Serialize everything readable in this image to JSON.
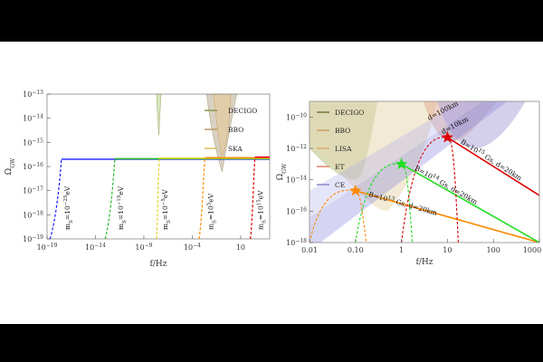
{
  "chart_data": [
    {
      "type": "line",
      "xlabel": "f/Hz",
      "ylabel": "Ω_GW",
      "x_scale": "log",
      "y_scale": "log",
      "xlim": [
        1e-19,
        10000.0
      ],
      "ylim": [
        1e-19,
        1e-13
      ],
      "x_ticks": [
        {
          "v": 1e-19,
          "b": "10",
          "e": "−19"
        },
        {
          "v": 1e-14,
          "b": "10",
          "e": "−14"
        },
        {
          "v": 1e-09,
          "b": "10",
          "e": "−9"
        },
        {
          "v": 0.0001,
          "b": "10",
          "e": "−4"
        },
        {
          "v": 10,
          "b": "10",
          "e": ""
        }
      ],
      "y_ticks": [
        {
          "v": 1e-19,
          "b": "10",
          "e": "−19"
        },
        {
          "v": 1e-18,
          "b": "10",
          "e": "−18"
        },
        {
          "v": 1e-17,
          "b": "10",
          "e": "−17"
        },
        {
          "v": 1e-16,
          "b": "10",
          "e": "−16"
        },
        {
          "v": 1e-15,
          "b": "10",
          "e": "−15"
        },
        {
          "v": 1e-14,
          "b": "10",
          "e": "−14"
        },
        {
          "v": 1e-13,
          "b": "10",
          "e": "−13"
        }
      ],
      "legend": {
        "position": "top-right",
        "items": [
          {
            "name": "DECIGO",
            "color": "#8a9a4a"
          },
          {
            "name": "BBO",
            "color": "#b89a6a"
          },
          {
            "name": "SKA",
            "color": "#d8c060"
          }
        ]
      },
      "series": [
        {
          "name": "m_S=10^−25 eV",
          "color": "#1a1aff",
          "plateau": 2e-16,
          "f_start": 3e-18,
          "f_low": 2e-19,
          "label": "m_S=10^−25eV"
        },
        {
          "name": "m_S=10^−15 eV",
          "color": "#22bb22",
          "plateau": 2e-16,
          "f_start": 1e-12,
          "f_low": 1e-13,
          "label": "m_S=10^−15eV"
        },
        {
          "name": "m_S=10^−5 eV",
          "color": "#e6d020",
          "plateau": 2e-16,
          "f_start": 4e-08,
          "f_low": 2e-08,
          "label": "m_S=10^−5eV"
        },
        {
          "name": "m_S=10^5 eV",
          "color": "#ff8800",
          "plateau": 2e-16,
          "f_start": 0.002,
          "f_low": 0.0005,
          "label": "m_S=10^5eV"
        },
        {
          "name": "m_S=10^15 eV",
          "color": "#dd0000",
          "plateau": 2e-16,
          "f_start": 300,
          "f_low": 100,
          "label": "m_S=10^15eV"
        }
      ]
    },
    {
      "type": "line",
      "xlabel": "f/Hz",
      "ylabel": "Ω_GW",
      "x_scale": "log",
      "y_scale": "log",
      "xlim": [
        0.01,
        1000
      ],
      "ylim": [
        1e-18,
        1e-09
      ],
      "x_ticks": [
        {
          "v": 0.01,
          "t": "0.01"
        },
        {
          "v": 0.1,
          "t": "0.10"
        },
        {
          "v": 1,
          "t": "1"
        },
        {
          "v": 10,
          "t": "10"
        },
        {
          "v": 100,
          "t": "100"
        },
        {
          "v": 1000,
          "t": "1000"
        }
      ],
      "y_ticks": [
        {
          "v": 1e-10,
          "b": "10",
          "e": "−10"
        },
        {
          "v": 1e-12,
          "b": "10",
          "e": "−12"
        },
        {
          "v": 1e-14,
          "b": "10",
          "e": "−14"
        },
        {
          "v": 1e-16,
          "b": "10",
          "e": "−16"
        },
        {
          "v": 1e-18,
          "b": "10",
          "e": "−18"
        }
      ],
      "legend": {
        "position": "top-left",
        "items": [
          {
            "name": "DECIGO",
            "color": "#6b7a3a"
          },
          {
            "name": "BBO",
            "color": "#c8a060"
          },
          {
            "name": "LISA",
            "color": "#d8b070"
          },
          {
            "name": "ET",
            "color": "#e08060"
          },
          {
            "name": "CE",
            "color": "#8888cc"
          }
        ]
      },
      "band_labels": [
        "d=100km",
        "d=10km"
      ],
      "series": [
        {
          "name": "B=10^13 Gs, d=20km",
          "color": "#ff8800",
          "peak_f": 0.1,
          "peak_omega": 2e-15,
          "end_f": 1000,
          "end_omega": 1e-18
        },
        {
          "name": "B=10^14 Gs, d=20km",
          "color": "#22dd22",
          "peak_f": 1,
          "peak_omega": 1e-13,
          "end_f": 1000,
          "end_omega": 1e-18
        },
        {
          "name": "B=10^15 Gs, d=20km",
          "color": "#dd0000",
          "peak_f": 10,
          "peak_omega": 5e-12,
          "end_f": 1000,
          "end_omega": 1e-15
        }
      ],
      "series_labels": [
        {
          "b": "B=10",
          "e": "13",
          "tail": "Gs, d=20km"
        },
        {
          "b": "B=10",
          "e": "14",
          "tail": "Gs, d=20km"
        },
        {
          "b": "B=10",
          "e": "15",
          "tail": "Gs, d=20km"
        }
      ]
    }
  ]
}
